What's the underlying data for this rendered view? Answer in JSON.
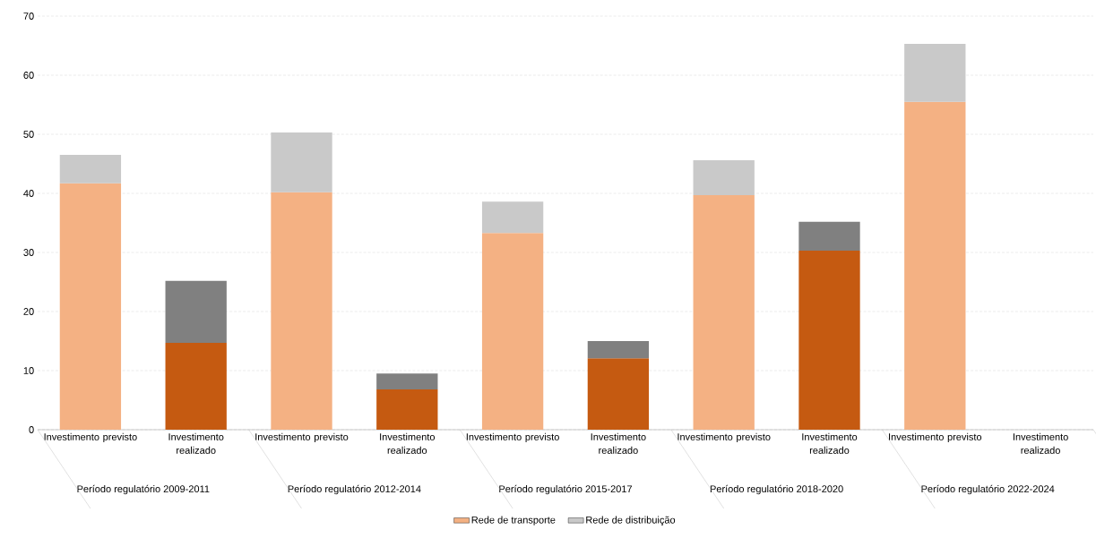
{
  "chart_data": {
    "type": "bar",
    "stacked": true,
    "categories": [
      "Investimento previsto",
      "Investimento realizado",
      "Investimento previsto",
      "Investimento realizado",
      "Investimento previsto",
      "Investimento realizado",
      "Investimento previsto",
      "Investimento realizado",
      "Investimento previsto",
      "Investimento realizado"
    ],
    "annotations": [
      "Período regulatório 2009-2011",
      "Período regulatório 2012-2014",
      "Período regulatório 2015-2017",
      "Período regulatório 2018-2020",
      "Período regulatório 2022-2024"
    ],
    "series": [
      {
        "name": "Rede de transporte",
        "color": "#f4b183",
        "colors": [
          "#f4b183",
          "#c55a11",
          "#f4b183",
          "#c55a11",
          "#f4b183",
          "#c55a11",
          "#f4b183",
          "#c55a11",
          "#f4b183",
          "#c55a11"
        ],
        "values": [
          41.7,
          14.7,
          40.2,
          6.8,
          33.3,
          12.1,
          39.7,
          30.3,
          55.5,
          null
        ]
      },
      {
        "name": "Rede de distribuição",
        "color": "#c9c9c9",
        "colors": [
          "#c9c9c9",
          "#808080",
          "#c9c9c9",
          "#808080",
          "#c9c9c9",
          "#808080",
          "#c9c9c9",
          "#808080",
          "#c9c9c9",
          "#808080"
        ],
        "values": [
          4.8,
          10.5,
          10.1,
          2.7,
          5.3,
          2.9,
          5.9,
          4.9,
          9.8,
          null
        ]
      }
    ],
    "ylim": [
      0,
      70
    ],
    "yticks": [
      0,
      10,
      20,
      30,
      40,
      50,
      60,
      70
    ],
    "grid": "y",
    "legend": "bottom"
  }
}
